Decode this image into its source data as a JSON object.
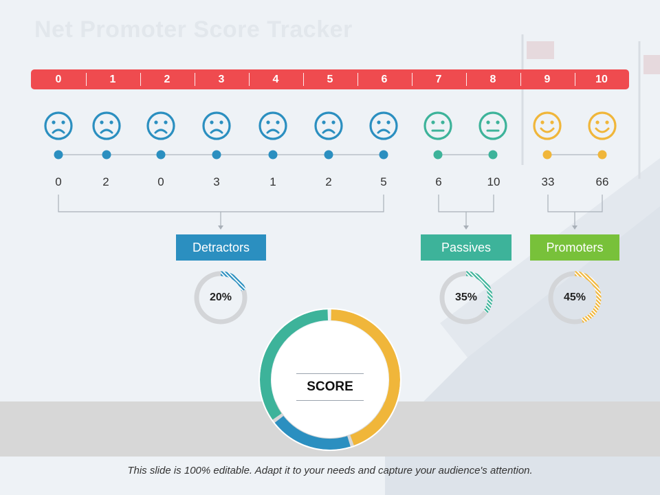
{
  "slide": {
    "title": "Net Promoter Score Tracker",
    "footer": "This slide is 100% editable. Adapt it to your needs and capture your audience's attention."
  },
  "scale": {
    "numbers": [
      "0",
      "1",
      "2",
      "3",
      "4",
      "5",
      "6",
      "7",
      "8",
      "9",
      "10"
    ],
    "bar_color": "#ef4b4f"
  },
  "faces": [
    {
      "mood": "sad",
      "color": "#2b8fc0"
    },
    {
      "mood": "sad",
      "color": "#2b8fc0"
    },
    {
      "mood": "sad",
      "color": "#2b8fc0"
    },
    {
      "mood": "sad",
      "color": "#2b8fc0"
    },
    {
      "mood": "sad",
      "color": "#2b8fc0"
    },
    {
      "mood": "sad",
      "color": "#2b8fc0"
    },
    {
      "mood": "sad",
      "color": "#2b8fc0"
    },
    {
      "mood": "neutral",
      "color": "#3db39a"
    },
    {
      "mood": "neutral",
      "color": "#3db39a"
    },
    {
      "mood": "happy",
      "color": "#f0b63a"
    },
    {
      "mood": "happy",
      "color": "#f0b63a"
    }
  ],
  "counts": [
    "0",
    "2",
    "0",
    "3",
    "1",
    "2",
    "5",
    "6",
    "10",
    "33",
    "66"
  ],
  "categories": {
    "detractors": {
      "label": "Detractors",
      "percent": "20%",
      "value": 0.2,
      "color": "#2b8fc0"
    },
    "passives": {
      "label": "Passives",
      "percent": "35%",
      "value": 0.35,
      "color": "#3db39a"
    },
    "promoters": {
      "label": "Promoters",
      "percent": "45%",
      "value": 0.45,
      "color": "#f0b63a",
      "box_color": "#78c13a"
    }
  },
  "score": {
    "label": "SCORE",
    "segments": [
      {
        "name": "Detractors",
        "value": 0.2,
        "color": "#2b8fc0"
      },
      {
        "name": "Passives",
        "value": 0.35,
        "color": "#3db39a"
      },
      {
        "name": "Promoters",
        "value": 0.45,
        "color": "#f0b63a"
      }
    ]
  }
}
